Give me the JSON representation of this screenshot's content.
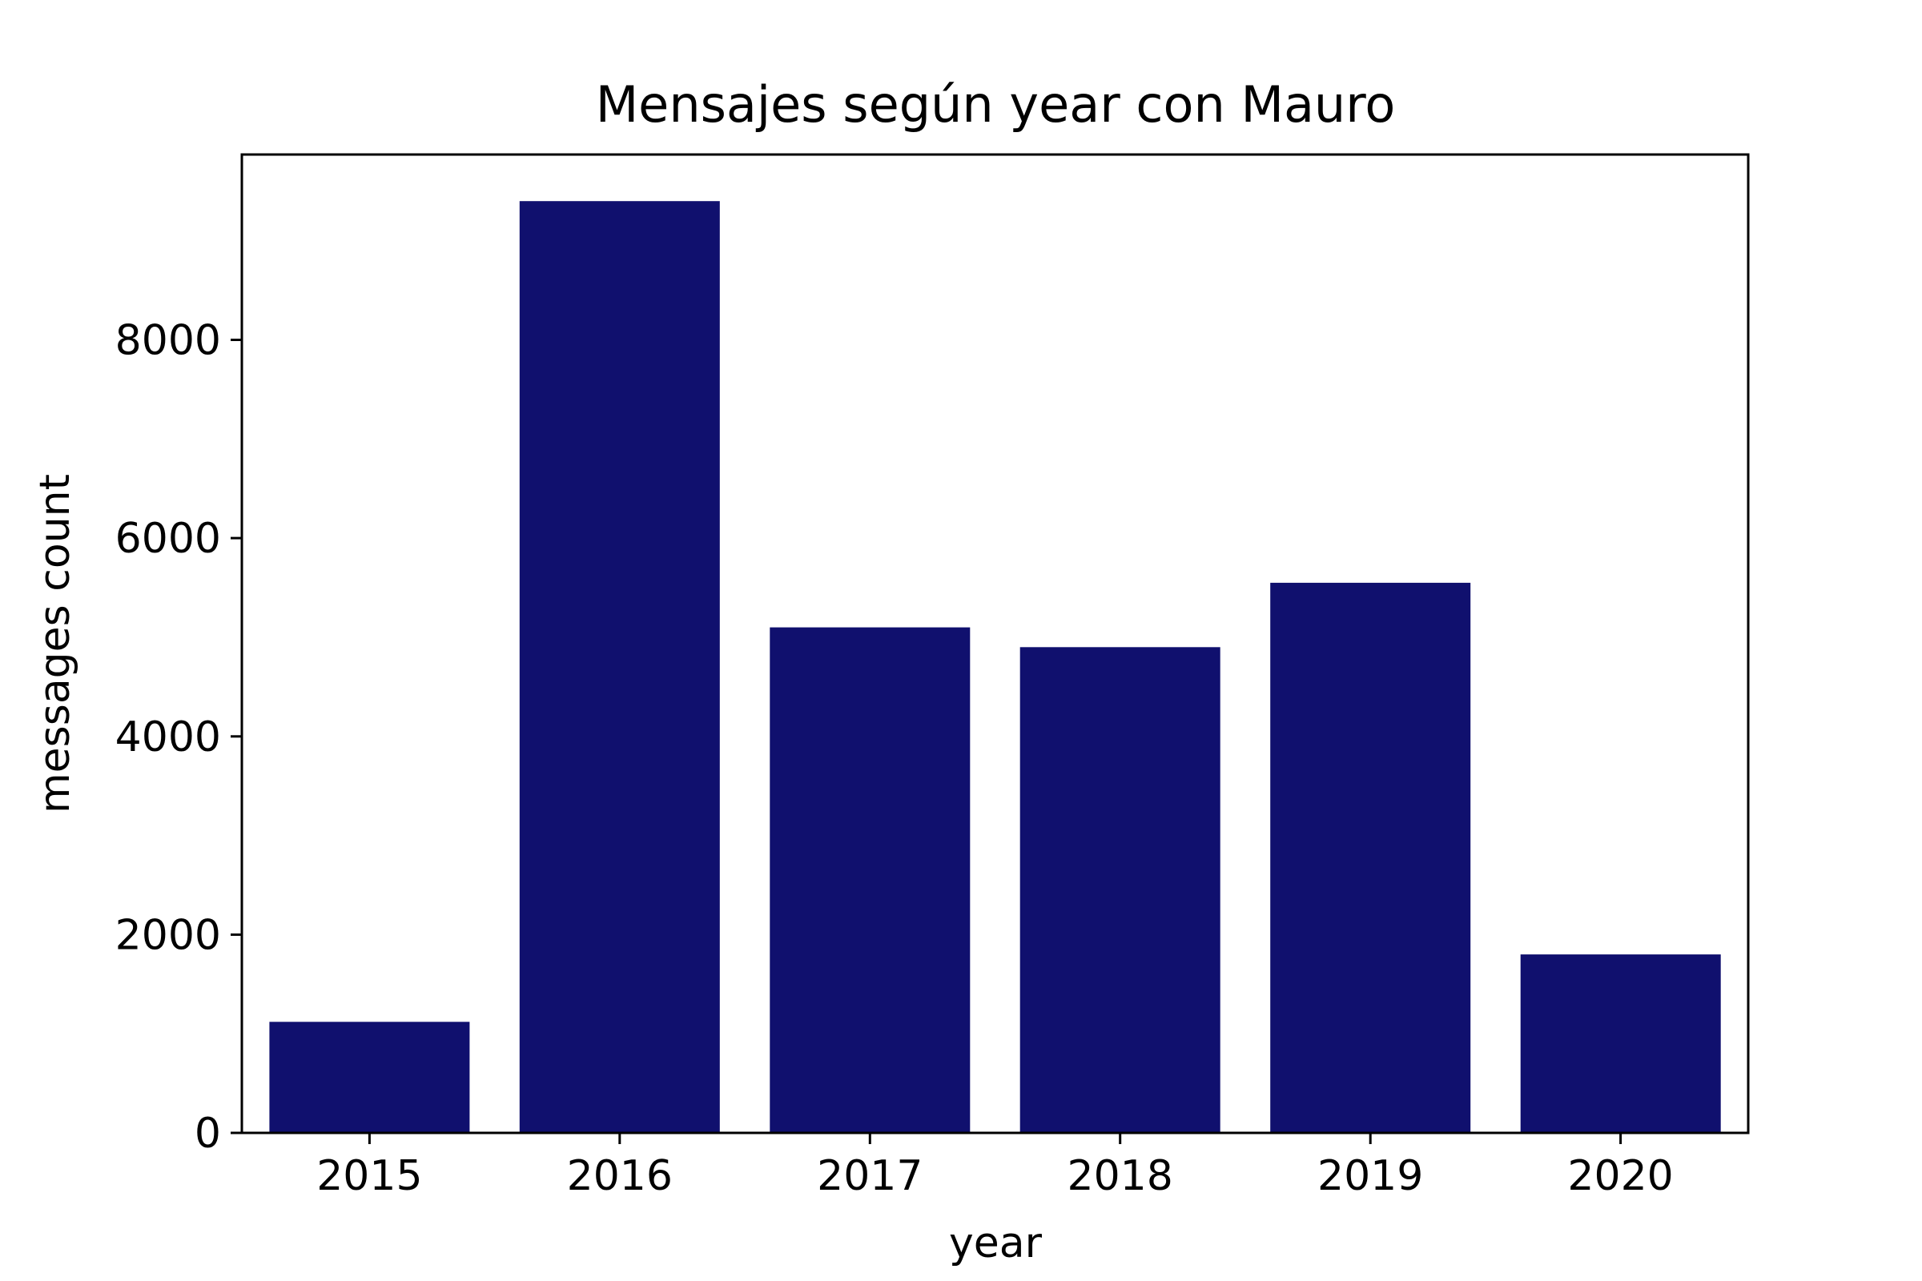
{
  "chart_data": {
    "type": "bar",
    "title": "Mensajes según year con Mauro",
    "xlabel": "year",
    "ylabel": "messages count",
    "categories": [
      "2015",
      "2016",
      "2017",
      "2018",
      "2019",
      "2020"
    ],
    "values": [
      1120,
      9400,
      5100,
      4900,
      5550,
      1800
    ],
    "yticks": [
      0,
      2000,
      4000,
      6000,
      8000
    ],
    "ylim": [
      0,
      9870
    ],
    "grid": false,
    "legend": false,
    "bar_color": "#10106e"
  }
}
